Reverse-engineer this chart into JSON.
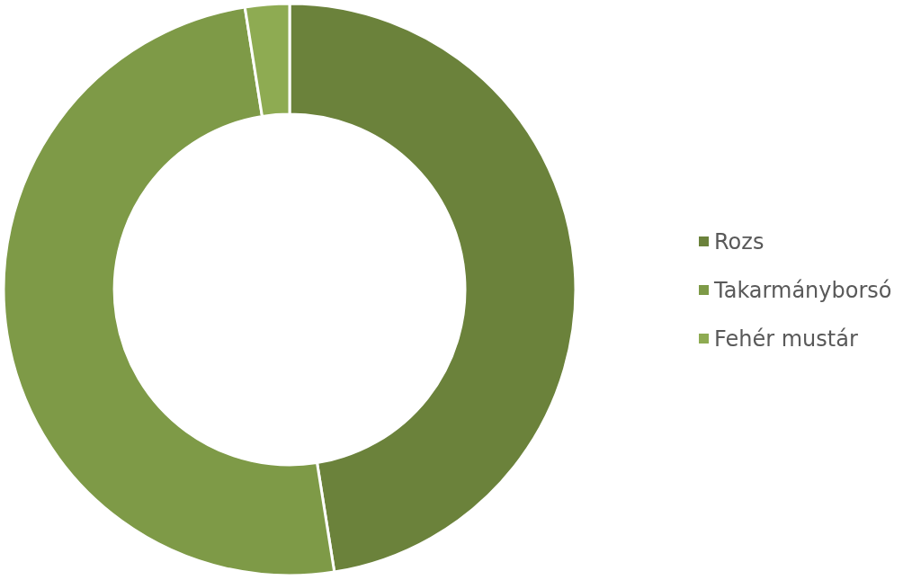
{
  "chart_data": {
    "type": "donut",
    "categories": [
      "Rozs",
      "Takarmányborsó",
      "Fehér mustár"
    ],
    "values": [
      47.5,
      50,
      2.5
    ],
    "colors": [
      "#6b823b",
      "#7e9a47",
      "#8eab52"
    ],
    "legend": "right"
  }
}
